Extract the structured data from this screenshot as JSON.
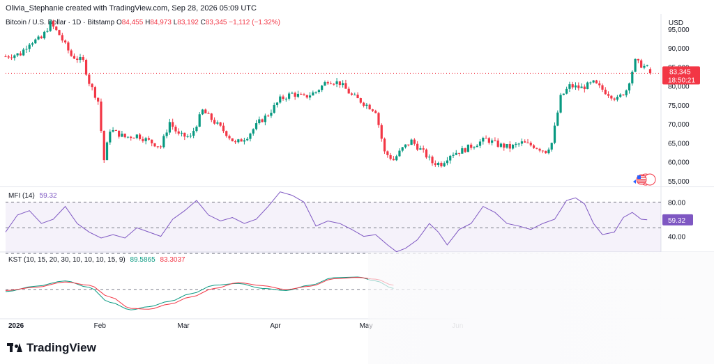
{
  "header": {
    "credit": "Olivia_Stephanie created with TradingView.com, Sep 28, 2026 05:09 UTC"
  },
  "symbol": {
    "title": "Bitcoin / U.S. Dollar · 1D · Bitstamp",
    "o_key": "O",
    "o": "84,455",
    "h_key": "H",
    "h": "84,973",
    "l_key": "L",
    "l": "83,192",
    "c_key": "C",
    "c": "83,345",
    "change": "−1,112 (−1.32%)"
  },
  "currency": "USD",
  "price_label": {
    "value": "83,345",
    "countdown": "18:50:21"
  },
  "mfi": {
    "label": "MFI (14)",
    "value": "59.32"
  },
  "kst": {
    "label": "KST (10, 15, 20, 30, 10, 10, 10, 15, 9)",
    "value1": "89.5865",
    "value2": "83.3037"
  },
  "colors": {
    "up": "#089981",
    "down": "#f23645",
    "mfi": "#7e57c2",
    "kst": "#089981",
    "kst_signal": "#f23645"
  },
  "brand": "TradingView",
  "chart_data": [
    {
      "type": "candlestick",
      "title": "Bitcoin / U.S. Dollar · 1D · Bitstamp",
      "ylabel": "USD",
      "ylim": [
        53500,
        99000
      ],
      "yticks": [
        55000,
        60000,
        65000,
        70000,
        75000,
        80000,
        85000,
        90000,
        95000
      ],
      "ytick_labels": [
        "55,000",
        "60,000",
        "65,000",
        "70,000",
        "75,000",
        "80,000",
        "85,000",
        "90,000",
        "95,000"
      ],
      "xticks": [
        {
          "label": "2026",
          "day": 0
        },
        {
          "label": "Feb",
          "day": 31
        },
        {
          "label": "Mar",
          "day": 59
        },
        {
          "label": "Apr",
          "day": 90
        },
        {
          "label": "May",
          "day": 120
        },
        {
          "label": "Jun",
          "day": 151
        }
      ],
      "last_price": 83345,
      "close_path": [
        [
          0,
          87800
        ],
        [
          5,
          88500
        ],
        [
          8,
          91500
        ],
        [
          12,
          92500
        ],
        [
          15,
          96500
        ],
        [
          18,
          93500
        ],
        [
          22,
          88000
        ],
        [
          26,
          86500
        ],
        [
          28,
          81000
        ],
        [
          31,
          76000
        ],
        [
          33,
          60500
        ],
        [
          35,
          68500
        ],
        [
          40,
          66500
        ],
        [
          44,
          67000
        ],
        [
          48,
          65500
        ],
        [
          52,
          64000
        ],
        [
          55,
          70500
        ],
        [
          58,
          67000
        ],
        [
          62,
          66500
        ],
        [
          66,
          73500
        ],
        [
          70,
          70500
        ],
        [
          74,
          67500
        ],
        [
          77,
          64800
        ],
        [
          81,
          66800
        ],
        [
          85,
          70500
        ],
        [
          88,
          72500
        ],
        [
          92,
          76500
        ],
        [
          96,
          78000
        ],
        [
          100,
          77000
        ],
        [
          104,
          78500
        ],
        [
          108,
          81500
        ],
        [
          112,
          80800
        ],
        [
          116,
          77500
        ],
        [
          120,
          75500
        ],
        [
          124,
          73500
        ],
        [
          127,
          62500
        ],
        [
          130,
          60500
        ],
        [
          133,
          63500
        ],
        [
          136,
          65500
        ],
        [
          140,
          62500
        ],
        [
          143,
          59800
        ],
        [
          146,
          59500
        ],
        [
          149,
          62000
        ],
        [
          153,
          63000
        ],
        [
          157,
          64500
        ],
        [
          161,
          66000
        ],
        [
          165,
          64500
        ],
        [
          169,
          63800
        ],
        [
          173,
          65000
        ],
        [
          177,
          64200
        ],
        [
          181,
          62800
        ],
        [
          183,
          65000
        ],
        [
          186,
          77000
        ],
        [
          189,
          80000
        ],
        [
          193,
          79500
        ],
        [
          197,
          80800
        ],
        [
          201,
          78500
        ],
        [
          205,
          76500
        ],
        [
          208,
          79000
        ],
        [
          211,
          86500
        ],
        [
          213,
          85500
        ],
        [
          216,
          84455
        ]
      ]
    },
    {
      "type": "line",
      "title": "MFI (14)",
      "ylim": [
        25,
        95
      ],
      "yticks": [
        40,
        80
      ],
      "ytick_labels": [
        "40.00",
        "80.00"
      ],
      "bands": [
        20,
        50,
        80
      ],
      "last_value": 59.32,
      "path": [
        [
          0,
          45
        ],
        [
          4,
          65
        ],
        [
          8,
          70
        ],
        [
          12,
          55
        ],
        [
          16,
          60
        ],
        [
          20,
          75
        ],
        [
          24,
          55
        ],
        [
          28,
          45
        ],
        [
          32,
          38
        ],
        [
          36,
          42
        ],
        [
          40,
          38
        ],
        [
          44,
          50
        ],
        [
          48,
          45
        ],
        [
          52,
          40
        ],
        [
          56,
          60
        ],
        [
          60,
          70
        ],
        [
          64,
          82
        ],
        [
          68,
          65
        ],
        [
          72,
          58
        ],
        [
          76,
          62
        ],
        [
          80,
          55
        ],
        [
          84,
          60
        ],
        [
          88,
          75
        ],
        [
          92,
          92
        ],
        [
          96,
          88
        ],
        [
          100,
          80
        ],
        [
          104,
          52
        ],
        [
          108,
          58
        ],
        [
          112,
          55
        ],
        [
          116,
          48
        ],
        [
          120,
          40
        ],
        [
          124,
          42
        ],
        [
          128,
          30
        ],
        [
          131,
          22
        ],
        [
          134,
          26
        ],
        [
          138,
          36
        ],
        [
          142,
          55
        ],
        [
          145,
          45
        ],
        [
          148,
          30
        ],
        [
          152,
          48
        ],
        [
          156,
          55
        ],
        [
          160,
          75
        ],
        [
          164,
          68
        ],
        [
          168,
          55
        ],
        [
          172,
          52
        ],
        [
          176,
          48
        ],
        [
          180,
          55
        ],
        [
          184,
          60
        ],
        [
          188,
          82
        ],
        [
          191,
          85
        ],
        [
          194,
          78
        ],
        [
          197,
          55
        ],
        [
          200,
          42
        ],
        [
          204,
          45
        ],
        [
          207,
          62
        ],
        [
          210,
          68
        ],
        [
          213,
          60
        ],
        [
          215,
          59.32
        ]
      ]
    },
    {
      "type": "line",
      "title": "KST (10, 15, 20, 30, 10, 10, 10, 15, 9)",
      "ylim": [
        -130,
        110
      ],
      "zero": 0,
      "series": [
        {
          "name": "KST",
          "points": [
            [
              0,
              -10
            ],
            [
              10,
              15
            ],
            [
              20,
              40
            ],
            [
              28,
              10
            ],
            [
              35,
              -60
            ],
            [
              42,
              -95
            ],
            [
              48,
              -80
            ],
            [
              55,
              -55
            ],
            [
              62,
              -20
            ],
            [
              70,
              20
            ],
            [
              78,
              28
            ],
            [
              86,
              5
            ],
            [
              94,
              -5
            ],
            [
              102,
              20
            ],
            [
              110,
              55
            ],
            [
              118,
              58
            ],
            [
              124,
              40
            ],
            [
              130,
              5
            ]
          ]
        },
        {
          "name": "Signal",
          "points": [
            [
              0,
              -5
            ],
            [
              10,
              10
            ],
            [
              20,
              35
            ],
            [
              28,
              20
            ],
            [
              35,
              -35
            ],
            [
              42,
              -88
            ],
            [
              48,
              -92
            ],
            [
              55,
              -68
            ],
            [
              62,
              -35
            ],
            [
              70,
              5
            ],
            [
              78,
              32
            ],
            [
              86,
              18
            ],
            [
              94,
              0
            ],
            [
              102,
              15
            ],
            [
              110,
              50
            ],
            [
              118,
              56
            ],
            [
              124,
              48
            ],
            [
              130,
              20
            ]
          ]
        }
      ]
    }
  ]
}
